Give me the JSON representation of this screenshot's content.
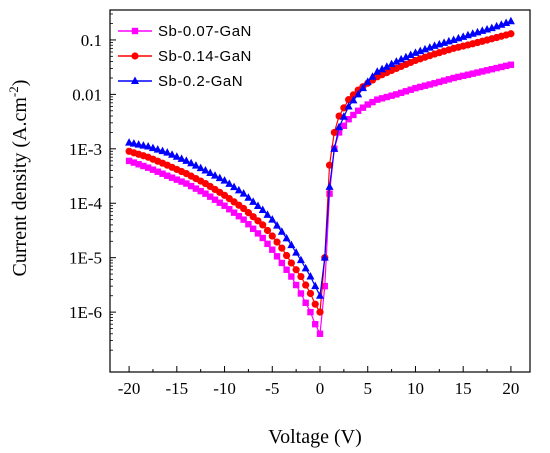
{
  "chart_data": {
    "type": "scatter",
    "xlabel": "Voltage (V)",
    "ylabel": "Current density (A.cm",
    "ylabel_sup": "-2",
    "ylabel_close": ")",
    "xlim": [
      -22,
      22
    ],
    "ylim_log10": [
      -7.1,
      -0.45
    ],
    "y_scale": "log",
    "x_ticks": [
      -20,
      -15,
      -10,
      -5,
      0,
      5,
      10,
      15,
      20
    ],
    "x_tick_labels": [
      "-20",
      "-15",
      "-10",
      "-5",
      "0",
      "5",
      "10",
      "15",
      "20"
    ],
    "y_ticks": [
      1e-06,
      1e-05,
      0.0001,
      0.001,
      0.01,
      0.1
    ],
    "y_tick_labels": [
      "1E-6",
      "1E-5",
      "1E-4",
      "1E-3",
      "0.01",
      "0.1"
    ],
    "grid": false,
    "legend_position": "top-left",
    "series": [
      {
        "name": "Sb-0.07-GaN",
        "color": "#ff00ff",
        "marker": "square",
        "x": [
          -20,
          -18,
          -16,
          -14,
          -12,
          -10,
          -8,
          -6,
          -5,
          -4,
          -3,
          -2,
          -1,
          -0.5,
          0,
          0.5,
          1,
          1.5,
          2,
          3,
          4,
          5,
          6,
          8,
          10,
          12,
          14,
          16,
          18,
          20
        ],
        "y": [
          0.0006,
          0.00045,
          0.00032,
          0.00023,
          0.00015,
          9e-05,
          5e-05,
          2.3e-05,
          1.4e-05,
          8e-06,
          4.5e-06,
          2.2e-06,
          1e-06,
          6e-07,
          4e-07,
          3e-06,
          0.00015,
          0.001,
          0.002,
          0.0035,
          0.005,
          0.0065,
          0.008,
          0.01,
          0.013,
          0.016,
          0.02,
          0.024,
          0.029,
          0.035
        ]
      },
      {
        "name": "Sb-0.14-GaN",
        "color": "#ff0000",
        "marker": "circle",
        "x": [
          -20,
          -18,
          -16,
          -14,
          -12,
          -10,
          -8,
          -6,
          -5,
          -4,
          -3,
          -2,
          -1,
          -0.5,
          0,
          0.5,
          1,
          1.5,
          2,
          3,
          4,
          5,
          6,
          8,
          10,
          12,
          14,
          16,
          18,
          20
        ],
        "y": [
          0.0009,
          0.0007,
          0.0005,
          0.00035,
          0.00023,
          0.00014,
          8e-05,
          4e-05,
          2.5e-05,
          1.5e-05,
          8e-06,
          4.5e-06,
          2.2e-06,
          1.4e-06,
          1e-06,
          1e-05,
          0.0005,
          0.002,
          0.004,
          0.008,
          0.012,
          0.016,
          0.021,
          0.03,
          0.042,
          0.055,
          0.07,
          0.085,
          0.105,
          0.13
        ]
      },
      {
        "name": "Sb-0.2-GaN",
        "color": "#0000ff",
        "marker": "triangle",
        "x": [
          -20,
          -18,
          -16,
          -14,
          -12,
          -10,
          -8,
          -6,
          -5,
          -4,
          -3,
          -2,
          -1,
          -0.5,
          0,
          0.5,
          1,
          1.5,
          2,
          3,
          4,
          5,
          6,
          8,
          10,
          12,
          14,
          16,
          18,
          20
        ],
        "y": [
          0.0013,
          0.0011,
          0.00085,
          0.0006,
          0.0004,
          0.00026,
          0.00015,
          7.5e-05,
          5e-05,
          3e-05,
          1.7e-05,
          9e-06,
          4.5e-06,
          3e-06,
          2e-06,
          1e-05,
          0.0002,
          0.001,
          0.0025,
          0.006,
          0.01,
          0.017,
          0.026,
          0.04,
          0.058,
          0.078,
          0.1,
          0.13,
          0.165,
          0.22
        ]
      }
    ]
  }
}
